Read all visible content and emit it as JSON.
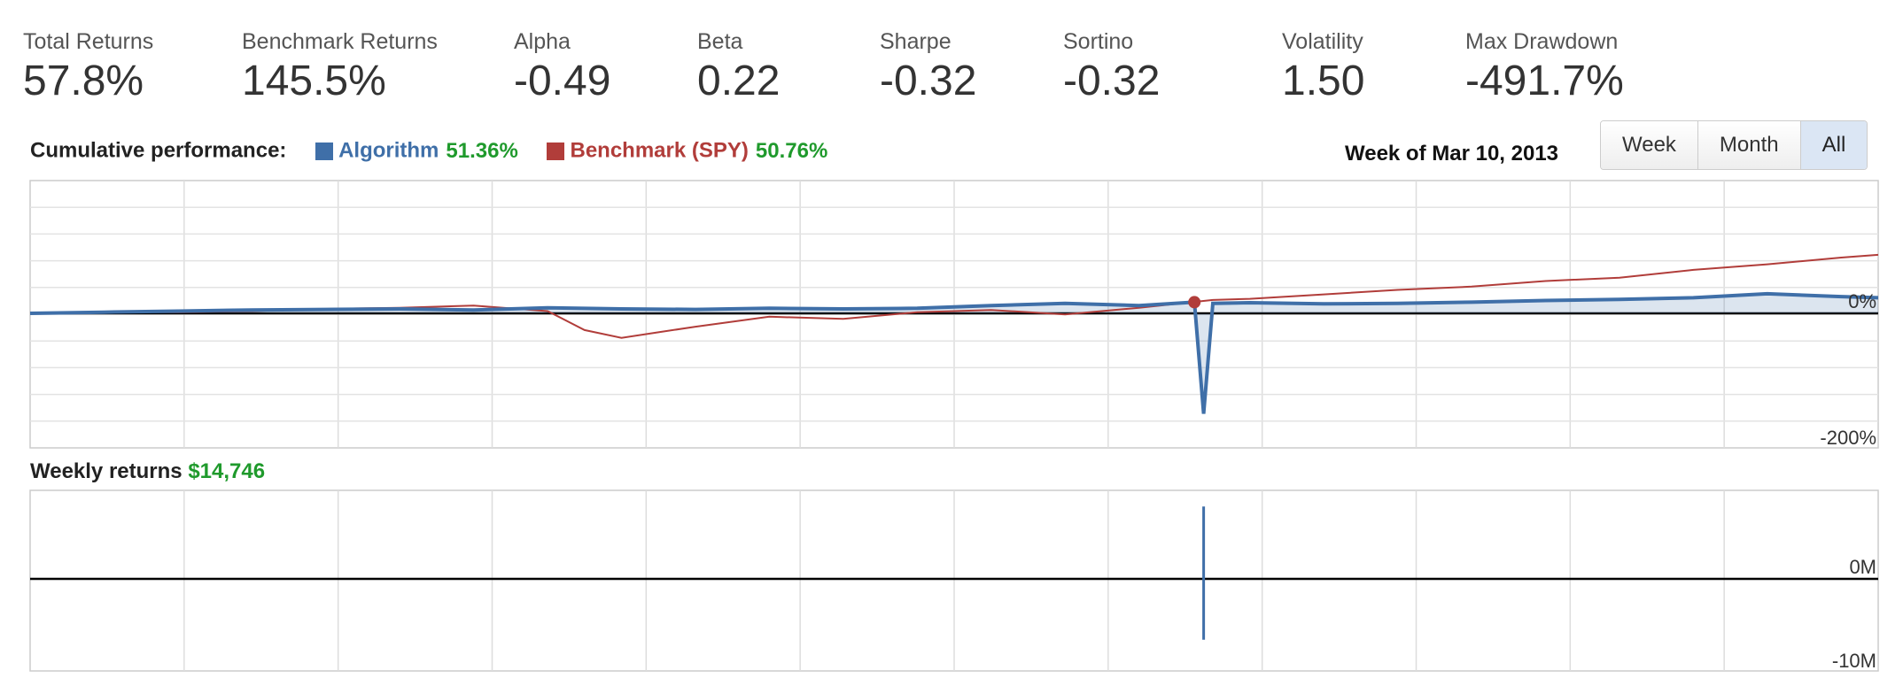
{
  "metrics": [
    {
      "label": "Total Returns",
      "value": "57.8%"
    },
    {
      "label": "Benchmark Returns",
      "value": "145.5%"
    },
    {
      "label": "Alpha",
      "value": "-0.49"
    },
    {
      "label": "Beta",
      "value": "0.22"
    },
    {
      "label": "Sharpe",
      "value": "-0.32"
    },
    {
      "label": "Sortino",
      "value": "-0.32"
    },
    {
      "label": "Volatility",
      "value": "1.50"
    },
    {
      "label": "Max Drawdown",
      "value": "-491.7%"
    }
  ],
  "cumulative": {
    "title": "Cumulative performance:",
    "algorithm_label": "Algorithm",
    "algorithm_value": "51.36%",
    "benchmark_label": "Benchmark (SPY)",
    "benchmark_value": "50.76%",
    "week_label": "Week of Mar 10, 2013",
    "colors": {
      "algorithm": "#3f6fa8",
      "benchmark": "#b13d3a",
      "positive": "#1f9a2c"
    }
  },
  "range_buttons": [
    {
      "label": "Week",
      "active": false
    },
    {
      "label": "Month",
      "active": false
    },
    {
      "label": "All",
      "active": true
    }
  ],
  "weekly": {
    "title": "Weekly returns",
    "amount": "$14,746"
  },
  "chart_data": [
    {
      "type": "line",
      "y_tick_labels": [
        "0%",
        "-200%"
      ],
      "grid": true,
      "series": [
        {
          "name": "Algorithm",
          "x": [
            0,
            4,
            8,
            12,
            16,
            20,
            24,
            28,
            32,
            36,
            40,
            44,
            48,
            52,
            56,
            60,
            63,
            63.5,
            64,
            66,
            70,
            74,
            78,
            82,
            86,
            90,
            94,
            98,
            100
          ],
          "y": [
            0,
            2,
            4,
            6,
            7,
            8,
            6,
            10,
            8,
            7,
            9,
            8,
            9,
            14,
            18,
            14,
            20,
            -180,
            18,
            19,
            17,
            18,
            20,
            23,
            25,
            28,
            35,
            30,
            28
          ]
        },
        {
          "name": "Benchmark (SPY)",
          "x": [
            0,
            4,
            8,
            12,
            16,
            20,
            24,
            28,
            30,
            32,
            34,
            36,
            40,
            44,
            48,
            52,
            56,
            60,
            64,
            66,
            70,
            74,
            78,
            82,
            86,
            90,
            94,
            98,
            100
          ],
          "y": [
            0,
            3,
            2,
            4,
            8,
            10,
            14,
            4,
            -30,
            -44,
            -34,
            -24,
            -6,
            -10,
            2,
            6,
            -2,
            10,
            24,
            26,
            34,
            42,
            48,
            58,
            64,
            78,
            88,
            100,
            105
          ]
        }
      ]
    },
    {
      "type": "bar",
      "y_tick_labels": [
        "0M",
        "-10M"
      ],
      "grid": true,
      "series": [
        {
          "name": "Weekly returns",
          "x": [
            63.5
          ],
          "y": [
            -9.5
          ]
        },
        {
          "name": "Weekly returns positive",
          "x": [
            63.5
          ],
          "y": [
            8
          ]
        }
      ]
    }
  ]
}
